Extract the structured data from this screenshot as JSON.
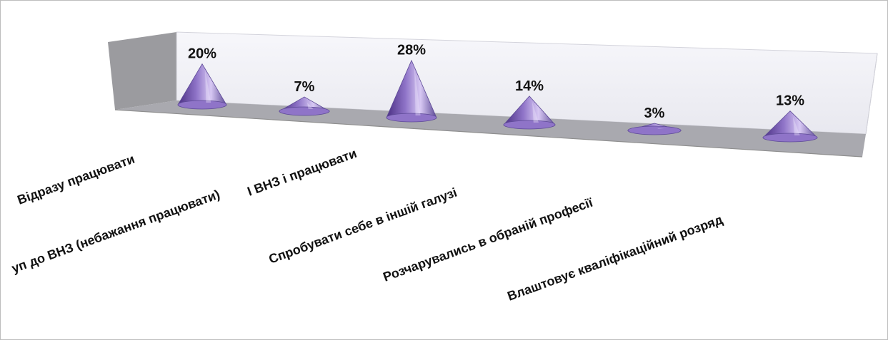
{
  "chart_data": {
    "type": "bar",
    "categories": [
      "Відразу працювати",
      "уп до ВНЗ (небажання працювати)",
      "І ВНЗ і працювати",
      "Спробувати себе в іншій галузі",
      "Розчарувались в обраній професії",
      "Влаштовує кваліфікаційний розряд"
    ],
    "values": [
      20,
      7,
      28,
      14,
      3,
      13
    ],
    "value_labels": [
      "20%",
      "7%",
      "28%",
      "14%",
      "3%",
      "13%"
    ],
    "unit": "%",
    "ylim": [
      0,
      30
    ],
    "grid": false,
    "legend": "none",
    "mark_shape": "cone",
    "colors": {
      "cone_dark": "#4a2f83",
      "cone_mid": "#8f74c8",
      "cone_light": "#d7c8f3",
      "cone_outline": "#5d4a96",
      "floor_fill": "#a9a9af",
      "back_wall_fill": "#f1f1f7",
      "side_wall_fill": "#9b9b9f",
      "frame_stroke": "#8f8f8f",
      "text": "#111111"
    }
  }
}
